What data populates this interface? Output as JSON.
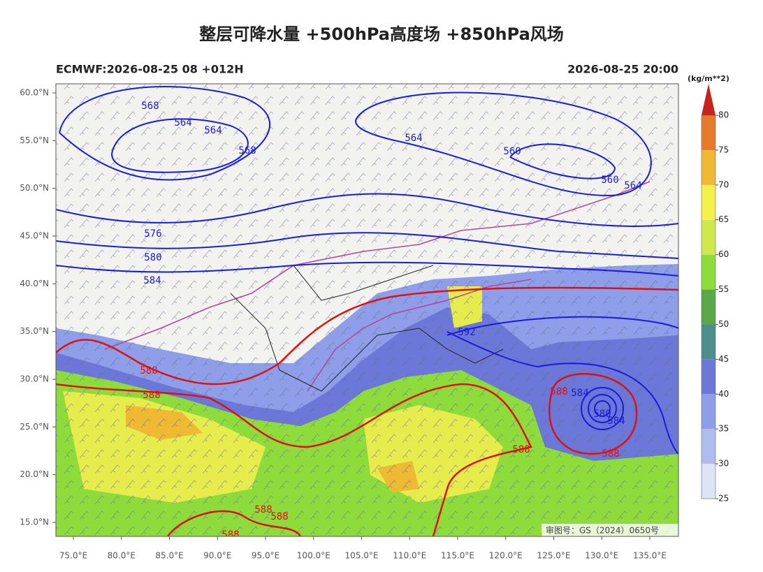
{
  "title": "整层可降水量 +500hPa高度场 +850hPa风场",
  "model_info": "ECMWF:2026-08-25 08 +012H",
  "valid_time": "2026-08-25 20:00",
  "watermark": "审图号：GS（2024）0650号",
  "map": {
    "xlim": [
      73.18,
      137.98
    ],
    "ylim": [
      13.54,
      60.95
    ],
    "xticks": [
      {
        "value": 75,
        "label": "75.0°E"
      },
      {
        "value": 80,
        "label": "80.0°E"
      },
      {
        "value": 85,
        "label": "85.0°E"
      },
      {
        "value": 90,
        "label": "90.0°E"
      },
      {
        "value": 95,
        "label": "95.0°E"
      },
      {
        "value": 100,
        "label": "100.0°E"
      },
      {
        "value": 105,
        "label": "105.0°E"
      },
      {
        "value": 110,
        "label": "110.0°E"
      },
      {
        "value": 115,
        "label": "115.0°E"
      },
      {
        "value": 120,
        "label": "120.0°E"
      },
      {
        "value": 125,
        "label": "125.0°E"
      },
      {
        "value": 130,
        "label": "130.0°E"
      },
      {
        "value": 135,
        "label": "135.0°E"
      }
    ],
    "yticks": [
      {
        "value": 15,
        "label": "15.0°N"
      },
      {
        "value": 20,
        "label": "20.0°N"
      },
      {
        "value": 25,
        "label": "25.0°N"
      },
      {
        "value": 30,
        "label": "30.0°N"
      },
      {
        "value": 35,
        "label": "35.0°N"
      },
      {
        "value": 40,
        "label": "40.0°N"
      },
      {
        "value": 45,
        "label": "45.0°N"
      },
      {
        "value": 50,
        "label": "50.0°N"
      },
      {
        "value": 55,
        "label": "55.0°N"
      },
      {
        "value": 60,
        "label": "60.0°N"
      }
    ],
    "contour_labels": [
      {
        "text": "568",
        "color": "#1a1adc"
      },
      {
        "text": "564",
        "color": "#1a1adc"
      },
      {
        "text": "564",
        "color": "#1a1adc"
      },
      {
        "text": "568",
        "color": "#1a1adc"
      },
      {
        "text": "564",
        "color": "#1a1adc"
      },
      {
        "text": "560",
        "color": "#1a1adc"
      },
      {
        "text": "560",
        "color": "#1a1adc"
      },
      {
        "text": "564",
        "color": "#1a1adc"
      },
      {
        "text": "576",
        "color": "#1a1adc"
      },
      {
        "text": "580",
        "color": "#1a1adc"
      },
      {
        "text": "584",
        "color": "#1a1adc"
      },
      {
        "text": "592",
        "color": "#1a1adc"
      },
      {
        "text": "588",
        "color": "#e01010"
      },
      {
        "text": "588",
        "color": "#e01010"
      },
      {
        "text": "588",
        "color": "#e01010"
      },
      {
        "text": "584",
        "color": "#1a1adc"
      },
      {
        "text": "580",
        "color": "#1a1adc"
      },
      {
        "text": "584",
        "color": "#1a1adc"
      },
      {
        "text": "588",
        "color": "#e01010"
      },
      {
        "text": "588",
        "color": "#e01010"
      },
      {
        "text": "588",
        "color": "#e01010"
      },
      {
        "text": "588",
        "color": "#e01010"
      },
      {
        "text": "588",
        "color": "#e01010"
      }
    ]
  },
  "colorbar": {
    "unit": "(kg/m**2)",
    "ticks": [
      25,
      30,
      35,
      40,
      45,
      50,
      55,
      60,
      65,
      70,
      75,
      80
    ],
    "colors": [
      "#dde4f6",
      "#aebdf0",
      "#8e9ee8",
      "#6c78d8",
      "#4b8e8c",
      "#5aa84a",
      "#8edc3c",
      "#cfe84c",
      "#f4f04c",
      "#f0b934",
      "#e47a2a"
    ],
    "over_color": "#c8221a"
  }
}
